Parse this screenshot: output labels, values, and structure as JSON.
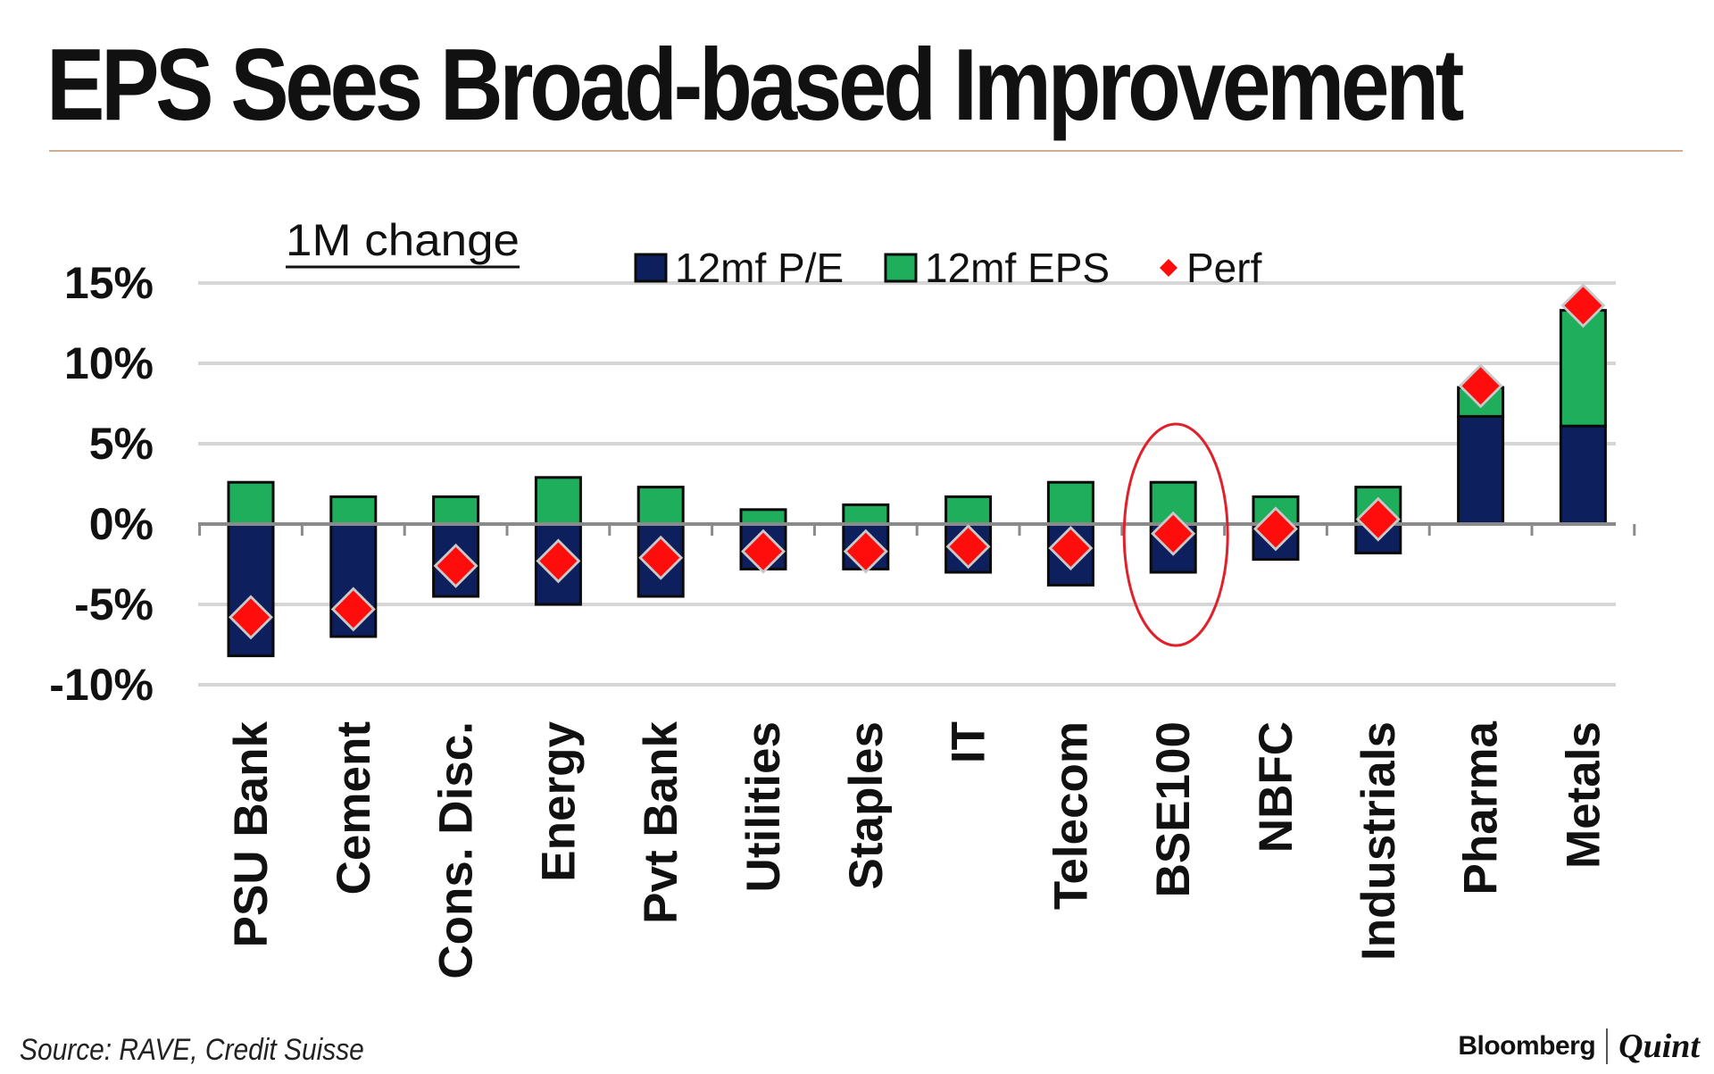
{
  "title": "EPS Sees Broad-based Improvement",
  "source": "Source: RAVE, Credit Suisse",
  "brand": {
    "name": "Bloomberg",
    "divider": "|",
    "sub": "Quint"
  },
  "chart_data": {
    "type": "bar",
    "stacked": true,
    "subtitle": "1M change",
    "categories": [
      "PSU Bank",
      "Cement",
      "Cons. Disc.",
      "Energy",
      "Pvt Bank",
      "Utilities",
      "Staples",
      "IT",
      "Telecom",
      "BSE100",
      "NBFC",
      "Industrials",
      "Pharma",
      "Metals"
    ],
    "series": [
      {
        "name": "12mf P/E",
        "kind": "bar",
        "color": "#0d1f5c",
        "values": [
          -8.2,
          -7.0,
          -4.5,
          -5.0,
          -4.5,
          -2.8,
          -2.8,
          -3.0,
          -3.8,
          -3.0,
          -2.2,
          -1.8,
          6.7,
          6.1
        ]
      },
      {
        "name": "12mf EPS",
        "kind": "bar",
        "color": "#1fae5b",
        "values": [
          2.6,
          1.7,
          1.7,
          2.9,
          2.3,
          0.9,
          1.2,
          1.7,
          2.6,
          2.6,
          1.7,
          2.3,
          1.8,
          7.2
        ]
      },
      {
        "name": "Perf",
        "kind": "marker",
        "color": "#ff0d0d",
        "values": [
          -5.8,
          -5.3,
          -2.6,
          -2.3,
          -2.1,
          -1.7,
          -1.7,
          -1.4,
          -1.5,
          -0.6,
          -0.3,
          0.3,
          8.6,
          13.6
        ]
      }
    ],
    "y_axis": {
      "min": -10,
      "max": 15,
      "ticks": [
        15,
        10,
        5,
        0,
        -5,
        -10
      ],
      "tick_labels": [
        "15%",
        "10%",
        "5%",
        "0%",
        "-5%",
        "-10%"
      ]
    },
    "grid": true,
    "legend_position": "top",
    "annotation": {
      "type": "ellipse",
      "category": "BSE100",
      "color": "#e0202a"
    }
  }
}
